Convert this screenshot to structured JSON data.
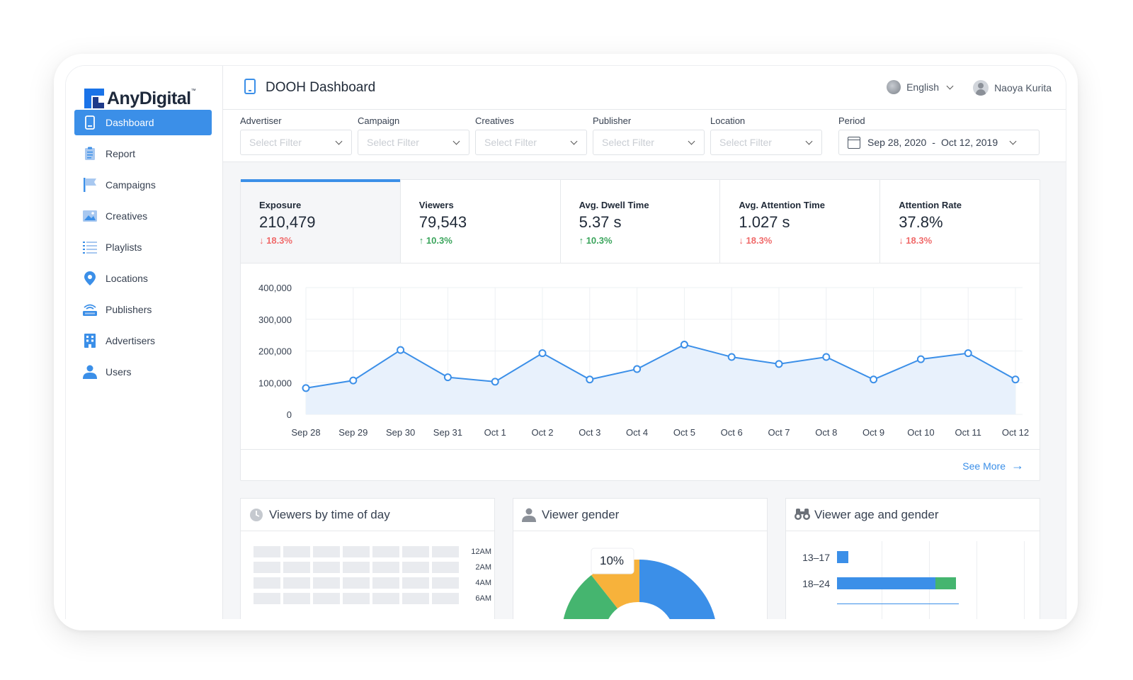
{
  "brand": {
    "name": "AnyDigital",
    "tm": "™"
  },
  "sidebar": {
    "items": [
      {
        "label": "Dashboard",
        "icon": "dashboard-icon",
        "active": true
      },
      {
        "label": "Report",
        "icon": "report-icon"
      },
      {
        "label": "Campaigns",
        "icon": "flag-icon"
      },
      {
        "label": "Creatives",
        "icon": "image-icon"
      },
      {
        "label": "Playlists",
        "icon": "list-icon"
      },
      {
        "label": "Locations",
        "icon": "location-pin-icon"
      },
      {
        "label": "Publishers",
        "icon": "broadcast-icon"
      },
      {
        "label": "Advertisers",
        "icon": "building-icon"
      },
      {
        "label": "Users",
        "icon": "user-icon"
      }
    ]
  },
  "header": {
    "title": "DOOH Dashboard",
    "language": "English",
    "user_name": "Naoya Kurita"
  },
  "filters": {
    "advertiser": {
      "label": "Advertiser",
      "placeholder": "Select Filter"
    },
    "campaign": {
      "label": "Campaign",
      "placeholder": "Select Filter"
    },
    "creatives": {
      "label": "Creatives",
      "placeholder": "Select Filter"
    },
    "publisher": {
      "label": "Publisher",
      "placeholder": "Select Filter"
    },
    "location": {
      "label": "Location",
      "placeholder": "Select Filter"
    },
    "period": {
      "label": "Period",
      "start": "Sep 28, 2020",
      "separator": "-",
      "end": "Oct 12, 2019"
    }
  },
  "stats": [
    {
      "label": "Exposure",
      "value": "210,479",
      "change": "↓ 18.3%",
      "direction": "down",
      "active": true
    },
    {
      "label": "Viewers",
      "value": "79,543",
      "change": "↑ 10.3%",
      "direction": "up"
    },
    {
      "label": "Avg. Dwell Time",
      "value": "5.37 s",
      "change": "↑ 10.3%",
      "direction": "up"
    },
    {
      "label": "Avg. Attention Time",
      "value": "1.027 s",
      "change": "↓ 18.3%",
      "direction": "down"
    },
    {
      "label": "Attention Rate",
      "value": "37.8%",
      "change": "↓ 18.3%",
      "direction": "down"
    }
  ],
  "colors": {
    "accent": "#3b8fe8",
    "down": "#f06a6a",
    "up": "#3ba55c",
    "female": "#45b56f",
    "other": "#f7b23b"
  },
  "chart_data": {
    "type": "area",
    "x": [
      "Sep 28",
      "Sep 29",
      "Sep 30",
      "Sep 31",
      "Oct 1",
      "Oct 2",
      "Oct 3",
      "Oct 4",
      "Oct 5",
      "Oct 6",
      "Oct 7",
      "Oct 8",
      "Oct 9",
      "Oct 10",
      "Oct 11",
      "Oct 12"
    ],
    "values": [
      83000,
      107000,
      203000,
      117000,
      103000,
      193000,
      110000,
      143000,
      220000,
      181000,
      159000,
      181000,
      110000,
      174000,
      193000,
      110000
    ],
    "yticks": [
      "400,000",
      "300,000",
      "200,000",
      "100,000",
      "0"
    ],
    "ylim": [
      0,
      400000
    ],
    "grid": true
  },
  "see_more": "See More",
  "time_of_day": {
    "title": "Viewers by time of day",
    "rows": [
      "12AM",
      "2AM",
      "4AM",
      "6AM"
    ]
  },
  "gender": {
    "title": "Viewer gender",
    "label": "10%"
  },
  "age_gender": {
    "title": "Viewer age and gender",
    "rows": [
      {
        "label": "13–17",
        "male": 0.06,
        "female": 0
      },
      {
        "label": "18–24",
        "male": 0.52,
        "female": 0.11
      }
    ]
  }
}
